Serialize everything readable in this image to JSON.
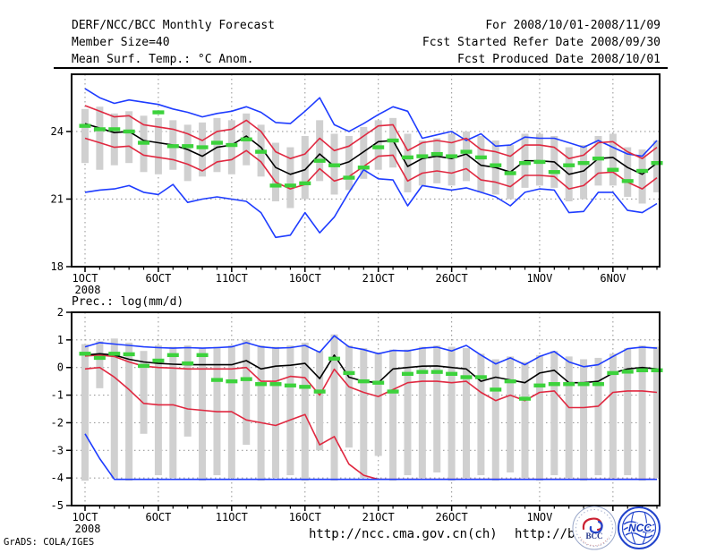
{
  "header": {
    "left_lines": [
      "DERF/NCC/BCC Monthly Forecast",
      "Member Size=40",
      "Mean Surf. Temp.: °C Anom."
    ],
    "right_lines": [
      "For 2008/10/01-2008/11/09",
      "Fcst Started Refer Date 2008/09/30",
      "Fcst Produced Date 2008/10/01"
    ]
  },
  "footer": {
    "url_ncc": "http://ncc.cma.gov.cn(ch)",
    "url_bcc": "http://bcc.c",
    "credit": "GrADS: COLA/IGES",
    "logos": [
      {
        "name": "bcc-logo",
        "label": "BCC"
      },
      {
        "name": "ncc-logo",
        "label": "NCC"
      }
    ]
  },
  "colors": {
    "blue": "#1e3cff",
    "red": "#e02840",
    "black": "#000000",
    "green": "#3cd23c",
    "bar_gray": "#d0d0d0",
    "grid_gray": "#9a9a9a",
    "logo_navy": "#223388",
    "logo_blue": "#2244cc",
    "logo_red": "#cc2233"
  },
  "chart_data": [
    {
      "type": "line",
      "title": "Mean Surf. Temp.: °C Anom.",
      "n_points": 40,
      "x_start": "2008/10/01",
      "x_end": "2008/11/09",
      "ylim": [
        18,
        26.54
      ],
      "yticks": [
        18,
        21,
        24
      ],
      "grid": true,
      "xticks": [
        {
          "day": 1,
          "label": "1OCT",
          "sublabel": "2008"
        },
        {
          "day": 6,
          "label": "6OCT"
        },
        {
          "day": 11,
          "label": "11OCT"
        },
        {
          "day": 16,
          "label": "16OCT"
        },
        {
          "day": 21,
          "label": "21OCT"
        },
        {
          "day": 26,
          "label": "26OCT"
        },
        {
          "day": 32,
          "label": "1NOV"
        },
        {
          "day": 37,
          "label": "6NOV"
        }
      ],
      "series": [
        {
          "name": "ensemble-max",
          "color": "blue",
          "style": "line",
          "values": [
            25.9,
            25.5,
            25.25,
            25.4,
            25.3,
            25.2,
            25.0,
            24.85,
            24.65,
            24.8,
            24.9,
            25.1,
            24.85,
            24.4,
            24.35,
            24.9,
            25.5,
            24.3,
            24.0,
            24.35,
            24.75,
            25.1,
            24.9,
            23.7,
            23.85,
            24.0,
            23.6,
            23.9,
            23.35,
            23.4,
            23.75,
            23.7,
            23.7,
            23.5,
            23.3,
            23.6,
            23.3,
            23.0,
            22.9,
            23.6
          ]
        },
        {
          "name": "upper-quartile",
          "color": "red",
          "style": "line",
          "values": [
            25.15,
            24.9,
            24.65,
            24.7,
            24.3,
            24.2,
            24.1,
            23.9,
            23.6,
            24.0,
            24.1,
            24.5,
            24.0,
            23.1,
            22.8,
            23.0,
            23.7,
            23.15,
            23.35,
            23.8,
            24.25,
            24.3,
            23.15,
            23.5,
            23.6,
            23.5,
            23.7,
            23.2,
            23.1,
            22.9,
            23.4,
            23.4,
            23.3,
            22.8,
            22.95,
            23.5,
            23.55,
            23.1,
            22.8,
            23.3
          ]
        },
        {
          "name": "ensemble-mean",
          "color": "black",
          "style": "line",
          "values": [
            24.35,
            24.15,
            23.95,
            24.0,
            23.6,
            23.5,
            23.4,
            23.2,
            22.9,
            23.3,
            23.4,
            23.8,
            23.3,
            22.4,
            22.1,
            22.3,
            23.0,
            22.45,
            22.65,
            23.1,
            23.55,
            23.6,
            22.45,
            22.8,
            22.9,
            22.8,
            23.0,
            22.5,
            22.4,
            22.2,
            22.7,
            22.7,
            22.65,
            22.1,
            22.25,
            22.8,
            22.85,
            22.4,
            22.1,
            22.6
          ]
        },
        {
          "name": "lower-quartile",
          "color": "red",
          "style": "line",
          "values": [
            23.7,
            23.5,
            23.3,
            23.35,
            22.95,
            22.85,
            22.75,
            22.55,
            22.25,
            22.65,
            22.75,
            23.15,
            22.65,
            21.75,
            21.45,
            21.65,
            22.35,
            21.8,
            22.0,
            22.45,
            22.9,
            22.95,
            21.8,
            22.15,
            22.25,
            22.15,
            22.35,
            21.85,
            21.75,
            21.55,
            22.05,
            22.05,
            22.0,
            21.45,
            21.6,
            22.15,
            22.2,
            21.75,
            21.45,
            21.95
          ]
        },
        {
          "name": "ensemble-min",
          "color": "blue",
          "style": "line",
          "values": [
            21.3,
            21.4,
            21.45,
            21.6,
            21.3,
            21.2,
            21.65,
            20.85,
            21.0,
            21.1,
            21.0,
            20.9,
            20.4,
            19.3,
            19.4,
            20.4,
            19.5,
            20.2,
            21.3,
            22.3,
            21.9,
            21.85,
            20.7,
            21.6,
            21.5,
            21.4,
            21.5,
            21.3,
            21.1,
            20.7,
            21.3,
            21.45,
            21.4,
            20.4,
            20.45,
            21.3,
            21.3,
            20.5,
            20.4,
            20.8
          ]
        },
        {
          "name": "climatology-obs",
          "color": "green",
          "style": "thick-dash",
          "values": [
            24.25,
            24.1,
            24.1,
            24.0,
            23.5,
            24.85,
            23.35,
            23.35,
            23.3,
            23.5,
            23.4,
            23.65,
            23.1,
            21.6,
            21.6,
            21.7,
            22.7,
            22.5,
            21.95,
            22.4,
            23.3,
            23.6,
            22.85,
            22.9,
            23.0,
            22.9,
            23.1,
            22.85,
            22.5,
            22.15,
            22.6,
            22.65,
            22.2,
            22.5,
            22.6,
            22.8,
            22.3,
            21.8,
            22.25,
            22.6
          ]
        }
      ],
      "spread_bars": {
        "high": [
          25.0,
          25.1,
          24.8,
          24.9,
          24.7,
          24.6,
          24.5,
          24.3,
          24.4,
          24.6,
          24.5,
          24.8,
          24.3,
          23.5,
          23.3,
          23.8,
          24.5,
          23.9,
          23.8,
          24.2,
          24.5,
          24.6,
          23.9,
          23.6,
          23.7,
          23.9,
          24.0,
          23.8,
          23.6,
          23.4,
          23.9,
          23.9,
          23.8,
          23.3,
          23.4,
          23.8,
          23.9,
          23.3,
          23.2,
          23.6
        ],
        "low": [
          22.6,
          22.3,
          22.5,
          22.6,
          22.2,
          22.1,
          22.3,
          21.8,
          22.0,
          22.2,
          22.1,
          22.5,
          22.0,
          20.9,
          20.6,
          21.0,
          21.8,
          21.2,
          21.4,
          21.9,
          22.3,
          22.4,
          21.3,
          21.6,
          21.7,
          21.6,
          21.8,
          21.3,
          21.2,
          21.0,
          21.5,
          21.6,
          21.5,
          20.9,
          21.0,
          21.6,
          21.6,
          21.1,
          20.8,
          21.3
        ]
      }
    },
    {
      "type": "line",
      "title": "Prec.: log(mm/d)",
      "n_points": 40,
      "x_start": "2008/10/01",
      "x_end": "2008/11/09",
      "ylim": [
        -5,
        2
      ],
      "yticks": [
        -5,
        -4,
        -3,
        -2,
        -1,
        0,
        1,
        2
      ],
      "grid": true,
      "xticks": [
        {
          "day": 1,
          "label": "1OCT",
          "sublabel": "2008"
        },
        {
          "day": 6,
          "label": "6OCT"
        },
        {
          "day": 11,
          "label": "11OCT"
        },
        {
          "day": 16,
          "label": "16OCT"
        },
        {
          "day": 21,
          "label": "21OCT"
        },
        {
          "day": 26,
          "label": "26OCT"
        },
        {
          "day": 32,
          "label": "1NOV"
        },
        {
          "day": 37,
          "label": ""
        }
      ],
      "series": [
        {
          "name": "ensemble-max",
          "color": "blue",
          "style": "line",
          "values": [
            0.75,
            0.9,
            0.85,
            0.8,
            0.75,
            0.72,
            0.7,
            0.72,
            0.7,
            0.72,
            0.75,
            0.9,
            0.75,
            0.7,
            0.72,
            0.8,
            0.55,
            1.15,
            0.75,
            0.65,
            0.5,
            0.62,
            0.6,
            0.7,
            0.74,
            0.6,
            0.8,
            0.45,
            0.13,
            0.35,
            0.1,
            0.4,
            0.58,
            0.2,
            0.03,
            0.1,
            0.4,
            0.68,
            0.74,
            0.7
          ]
        },
        {
          "name": "upper-quartile",
          "color": "red",
          "style": "line",
          "values": [
            0.42,
            0.45,
            0.4,
            0.2,
            0.05,
            0.0,
            -0.02,
            -0.05,
            -0.05,
            -0.05,
            -0.05,
            0.0,
            -0.5,
            -0.5,
            -0.32,
            -0.37,
            -1.0,
            -0.06,
            -0.7,
            -0.9,
            -1.05,
            -0.8,
            -0.55,
            -0.5,
            -0.5,
            -0.55,
            -0.5,
            -0.9,
            -1.2,
            -1.0,
            -1.2,
            -0.9,
            -0.85,
            -1.45,
            -1.45,
            -1.4,
            -0.9,
            -0.85,
            -0.85,
            -0.9
          ]
        },
        {
          "name": "ensemble-mean",
          "color": "black",
          "style": "line",
          "values": [
            0.45,
            0.5,
            0.45,
            0.3,
            0.2,
            0.15,
            0.12,
            0.1,
            0.1,
            0.1,
            0.1,
            0.25,
            -0.05,
            0.05,
            0.08,
            0.15,
            -0.4,
            0.45,
            -0.35,
            -0.5,
            -0.55,
            -0.05,
            0.0,
            0.05,
            0.06,
            0.0,
            -0.05,
            -0.5,
            -0.35,
            -0.45,
            -0.55,
            -0.2,
            -0.1,
            -0.55,
            -0.55,
            -0.5,
            -0.2,
            -0.05,
            0.0,
            -0.05
          ]
        },
        {
          "name": "lower-quartile",
          "color": "red",
          "style": "line",
          "values": [
            -0.05,
            0.0,
            -0.35,
            -0.8,
            -1.3,
            -1.35,
            -1.35,
            -1.5,
            -1.55,
            -1.6,
            -1.6,
            -1.9,
            -2.0,
            -2.1,
            -1.9,
            -1.7,
            -2.8,
            -2.5,
            -3.5,
            -3.9,
            -4.05,
            -4.05,
            -4.05,
            -4.05,
            -4.05,
            -4.05,
            -4.05,
            -4.05,
            -4.05,
            -4.05,
            -4.05,
            -4.05,
            -4.05,
            -4.05,
            -4.05,
            -4.05,
            -4.05,
            -4.05,
            -4.05,
            -4.05
          ]
        },
        {
          "name": "ensemble-min",
          "color": "blue",
          "style": "line",
          "values": [
            -2.4,
            -3.3,
            -4.05,
            -4.05,
            -4.05,
            -4.05,
            -4.05,
            -4.05,
            -4.05,
            -4.05,
            -4.05,
            -4.05,
            -4.05,
            -4.05,
            -4.05,
            -4.05,
            -4.05,
            -4.05,
            -4.05,
            -4.05,
            -4.05,
            -4.05,
            -4.05,
            -4.05,
            -4.05,
            -4.05,
            -4.05,
            -4.05,
            -4.05,
            -4.05,
            -4.05,
            -4.05,
            -4.05,
            -4.05,
            -4.05,
            -4.05,
            -4.05,
            -4.05,
            -4.05,
            -4.05
          ]
        },
        {
          "name": "climatology-obs",
          "color": "green",
          "style": "thick-dash",
          "values": [
            0.5,
            0.35,
            0.5,
            0.48,
            0.06,
            0.25,
            0.45,
            0.15,
            0.45,
            -0.45,
            -0.5,
            -0.42,
            -0.6,
            -0.6,
            -0.65,
            -0.7,
            -0.87,
            0.32,
            -0.2,
            -0.5,
            -0.55,
            -0.87,
            -0.23,
            -0.16,
            -0.16,
            -0.23,
            -0.35,
            -0.35,
            -0.8,
            -0.5,
            -1.13,
            -0.65,
            -0.6,
            -0.6,
            -0.6,
            -0.6,
            -0.2,
            -0.15,
            -0.1,
            -0.1
          ]
        }
      ],
      "spread_bars": {
        "high": [
          0.85,
          0.95,
          1.05,
          0.9,
          0.6,
          0.8,
          0.75,
          0.8,
          0.7,
          0.75,
          0.8,
          1.0,
          0.8,
          0.75,
          0.8,
          0.9,
          0.6,
          1.2,
          0.8,
          0.7,
          0.55,
          0.65,
          0.65,
          0.75,
          0.8,
          0.75,
          0.7,
          0.5,
          0.3,
          0.4,
          0.2,
          0.45,
          0.6,
          0.4,
          0.3,
          0.35,
          0.5,
          0.7,
          0.8,
          0.75
        ],
        "low": [
          -4.1,
          -0.75,
          -4.0,
          -4.1,
          -2.4,
          -3.9,
          -4.0,
          -2.5,
          -4.1,
          -3.9,
          -4.0,
          -2.8,
          -4.1,
          -4.0,
          -3.9,
          -4.1,
          -3.0,
          -4.1,
          -2.9,
          -4.0,
          -3.2,
          -4.1,
          -3.9,
          -4.0,
          -3.8,
          -4.1,
          -4.0,
          -3.9,
          -4.1,
          -3.8,
          -4.0,
          -4.1,
          -3.9,
          -4.0,
          -4.1,
          -3.9,
          -4.0,
          -3.9,
          -4.1,
          -4.0
        ]
      }
    }
  ]
}
